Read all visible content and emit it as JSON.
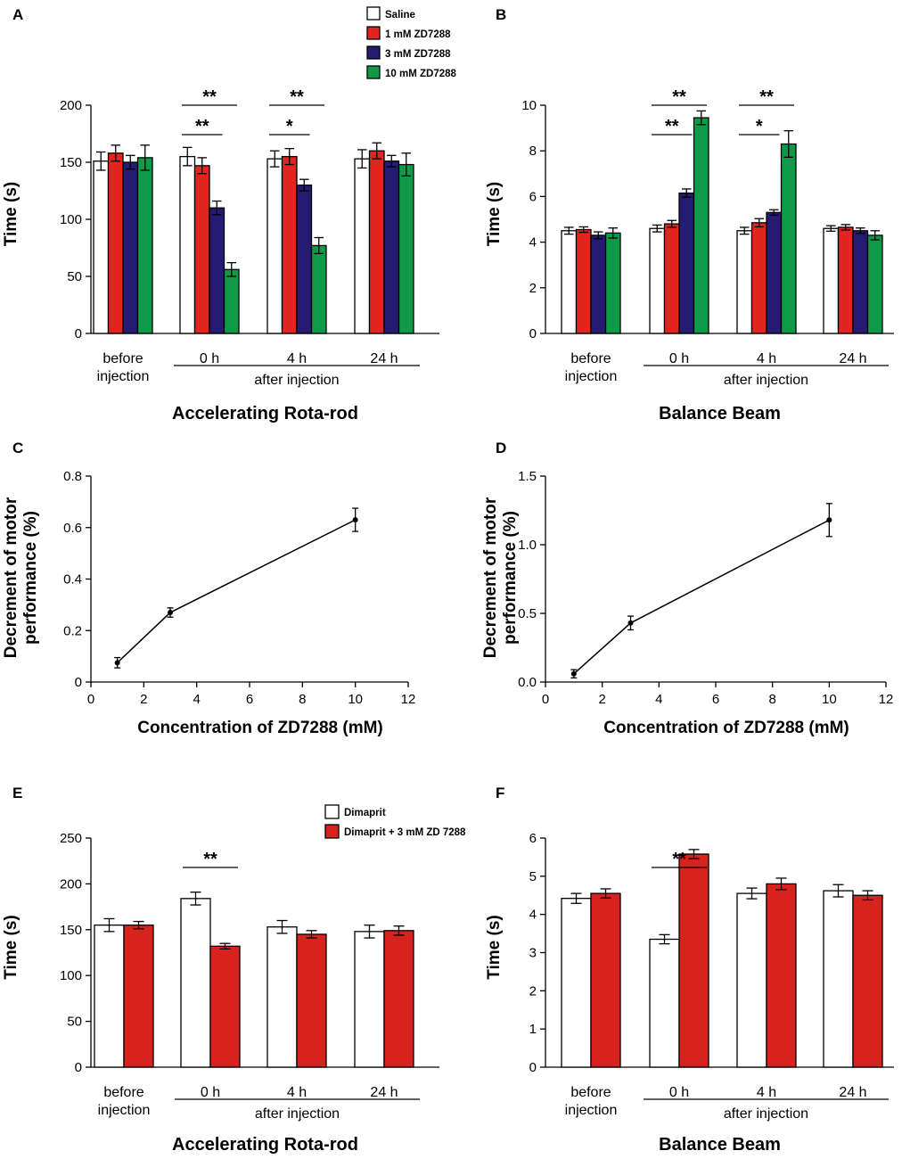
{
  "legend_top": [
    "Saline",
    "1 mM ZD7288",
    "3 mM ZD7288",
    "10 mM ZD7288"
  ],
  "legend_bottom": [
    "Dimaprit",
    "Dimaprit + 3 mM ZD 7288"
  ],
  "colors": {
    "Saline": "#ffffff",
    "1 mM ZD7288": "#e0261f",
    "3 mM ZD7288": "#261b73",
    "10 mM ZD7288": "#0e9a46",
    "Dimaprit": "#ffffff",
    "Dimaprit + 3 mM ZD 7288": "#d6231d"
  },
  "chart_data": [
    {
      "panel": "A",
      "type": "bar",
      "title": "Accelerating Rota-rod",
      "ylabel": "Time (s)",
      "ylim": [
        0,
        200
      ],
      "yticks": [
        0,
        50,
        100,
        150,
        200
      ],
      "categories": [
        "before injection",
        "0 h",
        "4 h",
        "24 h"
      ],
      "category_lines": [
        [
          "before",
          "injection"
        ],
        [
          "0 h"
        ],
        [
          "4 h"
        ],
        [
          "24 h"
        ]
      ],
      "group_label": "after injection",
      "series": [
        {
          "name": "Saline",
          "values": [
            151,
            155,
            153,
            153
          ],
          "errors": [
            8,
            8,
            7,
            8
          ]
        },
        {
          "name": "1 mM ZD7288",
          "values": [
            158,
            147,
            155,
            160
          ],
          "errors": [
            7,
            7,
            7,
            7
          ]
        },
        {
          "name": "3 mM ZD7288",
          "values": [
            150,
            110,
            130,
            151
          ],
          "errors": [
            6,
            6,
            5,
            5
          ]
        },
        {
          "name": "10 mM ZD7288",
          "values": [
            154,
            56,
            77,
            148
          ],
          "errors": [
            11,
            6,
            7,
            10
          ]
        }
      ],
      "significance": [
        {
          "category": 1,
          "from": 0,
          "to": 2,
          "label": "**",
          "level": 1
        },
        {
          "category": 1,
          "from": 0,
          "to": 3,
          "label": "**",
          "level": 2
        },
        {
          "category": 2,
          "from": 0,
          "to": 2,
          "label": "*",
          "level": 1
        },
        {
          "category": 2,
          "from": 0,
          "to": 3,
          "label": "**",
          "level": 2
        }
      ]
    },
    {
      "panel": "B",
      "type": "bar",
      "title": "Balance Beam",
      "ylabel": "Time (s)",
      "ylim": [
        0,
        10
      ],
      "yticks": [
        0,
        2,
        4,
        6,
        8,
        10
      ],
      "categories": [
        "before injection",
        "0 h",
        "4 h",
        "24 h"
      ],
      "category_lines": [
        [
          "before",
          "injection"
        ],
        [
          "0 h"
        ],
        [
          "4 h"
        ],
        [
          "24 h"
        ]
      ],
      "group_label": "after injection",
      "series": [
        {
          "name": "Saline",
          "values": [
            4.5,
            4.6,
            4.5,
            4.6
          ],
          "errors": [
            0.15,
            0.15,
            0.15,
            0.12
          ]
        },
        {
          "name": "1 mM ZD7288",
          "values": [
            4.55,
            4.8,
            4.85,
            4.65
          ],
          "errors": [
            0.12,
            0.15,
            0.18,
            0.12
          ]
        },
        {
          "name": "3 mM ZD7288",
          "values": [
            4.3,
            6.15,
            5.3,
            4.5
          ],
          "errors": [
            0.15,
            0.18,
            0.12,
            0.12
          ]
        },
        {
          "name": "10 mM ZD7288",
          "values": [
            4.4,
            9.45,
            8.3,
            4.3
          ],
          "errors": [
            0.22,
            0.3,
            0.58,
            0.2
          ]
        }
      ],
      "significance": [
        {
          "category": 1,
          "from": 0,
          "to": 2,
          "label": "**",
          "level": 1
        },
        {
          "category": 1,
          "from": 0,
          "to": 3,
          "label": "**",
          "level": 2
        },
        {
          "category": 2,
          "from": 0,
          "to": 2,
          "label": "*",
          "level": 1
        },
        {
          "category": 2,
          "from": 0,
          "to": 3,
          "label": "**",
          "level": 2
        }
      ]
    },
    {
      "panel": "C",
      "type": "line",
      "xlabel": "Concentration of ZD7288 (mM)",
      "ylabel": [
        "Decrement of motor",
        "performance (%)"
      ],
      "xlim": [
        0,
        12
      ],
      "ylim": [
        0,
        0.8
      ],
      "xticks": [
        0,
        2,
        4,
        6,
        8,
        10,
        12
      ],
      "yticks": [
        0,
        0.2,
        0.4,
        0.6,
        0.8
      ],
      "ytick_labels": [
        "0",
        "0.2",
        "0.4",
        "0.6",
        "0.8"
      ],
      "x": [
        1,
        3,
        10
      ],
      "y": [
        0.075,
        0.27,
        0.63
      ],
      "errors": [
        0.02,
        0.018,
        0.045
      ]
    },
    {
      "panel": "D",
      "type": "line",
      "xlabel": "Concentration of ZD7288 (mM)",
      "ylabel": [
        "Decrement of motor",
        "performance (%)"
      ],
      "xlim": [
        0,
        12
      ],
      "ylim": [
        0,
        1.5
      ],
      "xticks": [
        0,
        2,
        4,
        6,
        8,
        10,
        12
      ],
      "yticks": [
        0,
        0.5,
        1.0,
        1.5
      ],
      "ytick_labels": [
        "0.0",
        "0.5",
        "1.0",
        "1.5"
      ],
      "x": [
        1,
        3,
        10
      ],
      "y": [
        0.06,
        0.43,
        1.18
      ],
      "errors": [
        0.03,
        0.05,
        0.12
      ]
    },
    {
      "panel": "E",
      "type": "bar",
      "title": "Accelerating Rota-rod",
      "ylabel": "Time (s)",
      "ylim": [
        0,
        250
      ],
      "yticks": [
        0,
        50,
        100,
        150,
        200,
        250
      ],
      "categories": [
        "before injection",
        "0 h",
        "4 h",
        "24 h"
      ],
      "category_lines": [
        [
          "before",
          "injection"
        ],
        [
          "0 h"
        ],
        [
          "4 h"
        ],
        [
          "24 h"
        ]
      ],
      "group_label": "after injection",
      "series": [
        {
          "name": "Dimaprit",
          "values": [
            155,
            184,
            153,
            148
          ],
          "errors": [
            7,
            7,
            7,
            7
          ]
        },
        {
          "name": "Dimaprit + 3 mM ZD 7288",
          "values": [
            155,
            132,
            145,
            149
          ],
          "errors": [
            4,
            3,
            4,
            5
          ]
        }
      ],
      "significance": [
        {
          "category": 1,
          "from": 0,
          "to": 1,
          "label": "**",
          "level": 1
        }
      ]
    },
    {
      "panel": "F",
      "type": "bar",
      "title": "Balance Beam",
      "ylabel": "Time (s)",
      "ylim": [
        0,
        6
      ],
      "yticks": [
        0,
        1,
        2,
        3,
        4,
        5,
        6
      ],
      "categories": [
        "before injection",
        "0 h",
        "4 h",
        "24 h"
      ],
      "category_lines": [
        [
          "before",
          "injection"
        ],
        [
          "0 h"
        ],
        [
          "4 h"
        ],
        [
          "24 h"
        ]
      ],
      "group_label": "after injection",
      "series": [
        {
          "name": "Dimaprit",
          "values": [
            4.42,
            3.35,
            4.55,
            4.62
          ],
          "errors": [
            0.13,
            0.12,
            0.14,
            0.16
          ]
        },
        {
          "name": "Dimaprit + 3 mM ZD 7288",
          "values": [
            4.55,
            5.58,
            4.8,
            4.5
          ],
          "errors": [
            0.12,
            0.12,
            0.15,
            0.12
          ]
        }
      ],
      "significance": [
        {
          "category": 1,
          "from": 0,
          "to": 1,
          "label": "**",
          "level": 1
        }
      ]
    }
  ]
}
